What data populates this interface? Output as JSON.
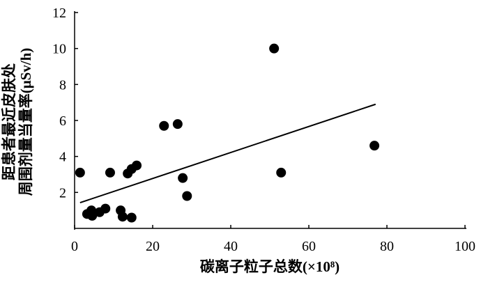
{
  "chart_data": {
    "type": "scatter",
    "x_label": "碳离子粒子总数(×10⁸)",
    "y_label": [
      "距患者最近皮肤处",
      "周围剂量当量率(μSv/h)"
    ],
    "x": [
      1.4,
      3.2,
      4.3,
      4.5,
      6.4,
      7.9,
      9.1,
      11.8,
      12.3,
      13.6,
      14.6,
      14.6,
      15.9,
      22.9,
      26.4,
      27.7,
      28.8,
      51.1,
      52.9,
      76.8
    ],
    "values": [
      3.1,
      0.8,
      1.0,
      0.7,
      0.9,
      1.1,
      3.1,
      1.0,
      0.65,
      3.05,
      3.3,
      0.6,
      3.5,
      5.7,
      5.8,
      2.8,
      1.8,
      10.0,
      3.1,
      4.6
    ],
    "color": "#000000",
    "trendline": {
      "x": [
        1.4,
        77.1
      ],
      "y": [
        1.43,
        6.9
      ]
    },
    "xlim": [
      0,
      100
    ],
    "ylim": [
      0,
      12
    ],
    "xticks": [
      0,
      20,
      40,
      60,
      80,
      100
    ],
    "yticks": [
      2,
      4,
      6,
      8,
      10,
      12
    ]
  }
}
